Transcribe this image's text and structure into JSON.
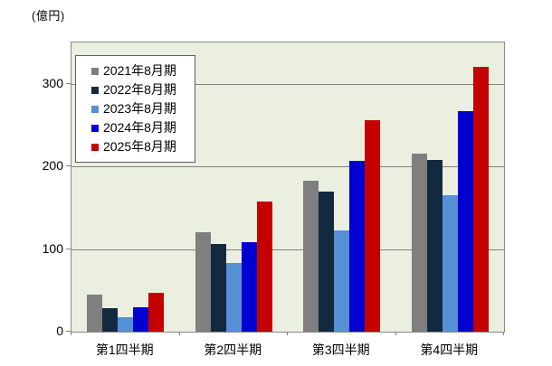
{
  "chart_data": {
    "type": "bar",
    "unit_label": "(億円)",
    "categories": [
      "第1四半期",
      "第2四半期",
      "第3四半期",
      "第4四半期"
    ],
    "series": [
      {
        "name": "2021年8月期",
        "color": "#7F7F7F",
        "values": [
          45,
          120,
          183,
          216
        ]
      },
      {
        "name": "2022年8月期",
        "color": "#13293F",
        "values": [
          28,
          106,
          170,
          208
        ]
      },
      {
        "name": "2023年8月期",
        "color": "#5590D5",
        "values": [
          18,
          83,
          123,
          165
        ]
      },
      {
        "name": "2024年8月期",
        "color": "#0000D0",
        "values": [
          30,
          108,
          207,
          267
        ]
      },
      {
        "name": "2025年8月期",
        "color": "#C40000",
        "values": [
          47,
          158,
          256,
          320
        ]
      }
    ],
    "ylim": [
      0,
      350
    ],
    "yticks": [
      0,
      100,
      200,
      300
    ],
    "grid": true,
    "legend_position": "top-left-inside",
    "plot_bg_color": "#EBEFE0",
    "grid_color": "#808080"
  }
}
